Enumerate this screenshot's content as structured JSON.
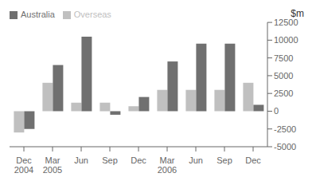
{
  "chart_data": {
    "type": "bar",
    "categories": [
      "Dec\n2004",
      "Mar\n2005",
      "Jun",
      "Sep",
      "Dec",
      "Mar\n2006",
      "Jun",
      "Sep",
      "Dec"
    ],
    "series": [
      {
        "name": "Overseas",
        "color": "#c0c0c0",
        "values": [
          -3000,
          4000,
          1200,
          1200,
          700,
          3000,
          3000,
          3000,
          4000
        ]
      },
      {
        "name": "Australia",
        "color": "#707070",
        "values": [
          -2500,
          6500,
          10500,
          -500,
          2000,
          7000,
          9500,
          9500,
          900
        ]
      }
    ],
    "ylabel": "$m",
    "ylim": [
      -5000,
      12500
    ],
    "yticks": [
      -5000,
      -2500,
      0,
      2500,
      5000,
      7500,
      10000,
      12500
    ],
    "legend": "upper left",
    "grid": false
  }
}
